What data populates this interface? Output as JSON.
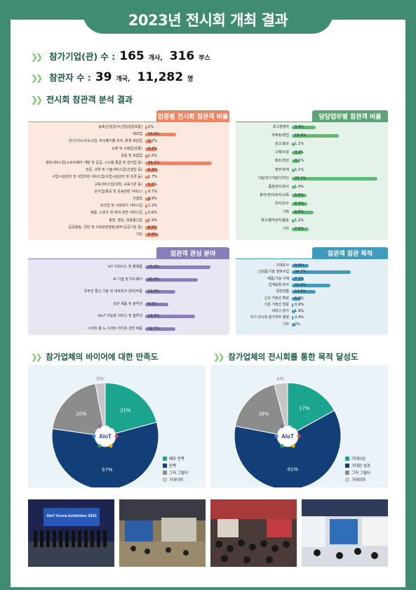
{
  "page_title": "2023년 전시회 개최 결과",
  "stats": {
    "exhibitors_label": "참가기업(관) 수 :",
    "exhibitors_companies": "165",
    "exhibitors_companies_unit": "개사,",
    "exhibitors_booths": "316",
    "exhibitors_booths_unit": "부스",
    "visitors_label": "참관자 수 :",
    "visitor_countries": "39",
    "visitor_countries_unit": "개국,",
    "visitor_count": "11,282",
    "visitor_count_unit": "명"
  },
  "section_visitor_analysis": "전시회 참관객 분석 결과",
  "section_satisfaction": "참가업체의 바이어에 대한 만족도",
  "section_goal": "참가업체의 전시회를 통한 목적 달성도",
  "colors": {
    "green": "#3f8c73",
    "salmon_bg": "#fbe9df",
    "salmon_title": "#ec8566",
    "salmon_bar": "#ec8566",
    "mint_bg": "#e4f2ea",
    "mint_title": "#5fa374",
    "mint_bar": "#5fb873",
    "lav_bg": "#e9e6f3",
    "lav_title": "#8a7eb9",
    "lav_bar": "#8a7eb9",
    "blue_bg": "#e3eff5",
    "blue_title": "#3e9bbd",
    "blue_bar": "#3e9bbd"
  },
  "chart_data": [
    {
      "type": "bar",
      "title": "업종별 전시회 참관객 비율",
      "categories": [
        "농축산/임업/수산업(광업포함)",
        "제조업",
        "전기/가스/수도사업, 하수폐기물 처리, 환경 복원업",
        "도매 및 소매업(유통)",
        "금융 및 보험업",
        "정보서비스업(소프트웨어 개발 및 공급, 시스템 통합 및 관리업 등)",
        "전문, 과학 및 기술서비스업(건설업 등)",
        "사업시설관리 및 사업지원 서비스업(사업시설관리 및 조경 등)",
        "교육서비스업(대학, 교육기관 등)",
        "운수업(항공 및 운송관련 서비스)",
        "건설업",
        "보건업 및 사회복지 서비스업",
        "예술, 스포츠 및 레저 관련 서비스업",
        "출판, 영상, 방송통신업",
        "공공행정, 국방 및 사회보장행정(정부/공공기관 등)",
        "기타"
      ],
      "values": [
        1,
        16.0,
        3.7,
        6.2,
        1.5,
        34.2,
        6.4,
        1.7,
        5.0,
        0.7,
        2.9,
        1.2,
        0.6,
        1.9,
        6.0,
        6.8
      ],
      "labels": [
        "1%",
        "16.0%",
        "3.7%",
        "6.2%",
        "1.5%",
        "34.2%",
        "6.4%",
        "1.7%",
        "5.0%",
        "0.7%",
        "2.9%",
        "1.2%",
        "0.6%",
        "1.9%",
        "6.0%",
        "6.8%"
      ]
    },
    {
      "type": "bar",
      "title": "담당업무별 참관객 비율",
      "categories": [
        "최고경영자",
        "마케팅/영업",
        "광고/홍보",
        "구매/조달",
        "제조/생산",
        "재무/회계",
        "기술/연구개발/디자인",
        "품질관리/검사",
        "총무/관리/복지/교육",
        "유지/보수",
        "기획",
        "재고/물자관리/물송",
        "기타"
      ],
      "values": [
        9.9,
        19.4,
        1.1,
        4.2,
        3.1,
        1.1,
        35.1,
        1.4,
        5.9,
        6.4,
        8.8,
        1.2,
        7.0
      ],
      "labels": [
        "9.9%",
        "19.4%",
        "1.1%",
        "4.2%",
        "3.1%",
        "1.1%",
        "35.1%",
        "1.4%",
        "5.9%",
        "6.4%",
        "8.8%",
        "1.2%",
        "7.0%"
      ]
    },
    {
      "type": "bar",
      "title": "참관객 관심 분야",
      "categories": [
        "IoT 디바이스 및 플랫폼",
        "AI 기술 및 하드웨어",
        "유무선 통신 기술 및 네트워크 장비/부품",
        "보안 제품 및 솔루션",
        "AIoT 지능형 서비스 및 솔루션",
        "스마트 홈 & 스마트 라이프 관련 제품"
      ],
      "values": [
        25.9,
        20.9,
        12.0,
        9.2,
        19.8,
        12.1
      ],
      "labels": [
        "25.9%",
        "20.9%",
        "12.0%",
        "9.2%",
        "19.8%",
        "12.1%"
      ]
    },
    {
      "type": "bar",
      "title": "참관객 참관 목적",
      "categories": [
        "구매조사",
        "신상품/기술 정보수집",
        "제품/기술 구매",
        "업계동향 파악",
        "일반관람",
        "신규 거래선 확보",
        "기존 거래선 방문",
        "세미나 참가",
        "차기 전시회 참가여부 결정",
        "기타"
      ],
      "values": [
        9.9,
        34.7,
        7.1,
        22.8,
        14.0,
        5.2,
        0.9,
        1.9,
        0.4,
        2
      ],
      "labels": [
        "9.9%",
        "34.7%",
        "7.1%",
        "22.8%",
        "14.0%",
        "5.2%",
        "0.9%",
        "1.9%",
        "0.4%",
        "2%"
      ]
    },
    {
      "type": "pie",
      "slices": [
        {
          "label": "매우 만족",
          "value": 21,
          "text": "21%",
          "color": "#1ba58e"
        },
        {
          "label": "만족",
          "value": 57,
          "text": "57%",
          "color": "#123f78"
        },
        {
          "label": "그저 그렇다",
          "value": 20,
          "text": "20%",
          "color": "#8c8c8c"
        },
        {
          "label": "기대이하",
          "value": 3,
          "text": "3%",
          "color": "#c6c6c6"
        }
      ]
    },
    {
      "type": "pie",
      "slices": [
        {
          "label": "기대이상",
          "value": 17,
          "text": "17%",
          "color": "#1ba58e"
        },
        {
          "label": "기대한 성과",
          "value": 61,
          "text": "61%",
          "color": "#123f78"
        },
        {
          "label": "그저 그렇다",
          "value": 18,
          "text": "18%",
          "color": "#8c8c8c"
        },
        {
          "label": "기대이하",
          "value": 4,
          "text": "4%",
          "color": "#c6c6c6"
        }
      ]
    }
  ],
  "pie_logo_text": "AIoT",
  "photo_banner_title": "AIoT Korea Exhibition 2023"
}
